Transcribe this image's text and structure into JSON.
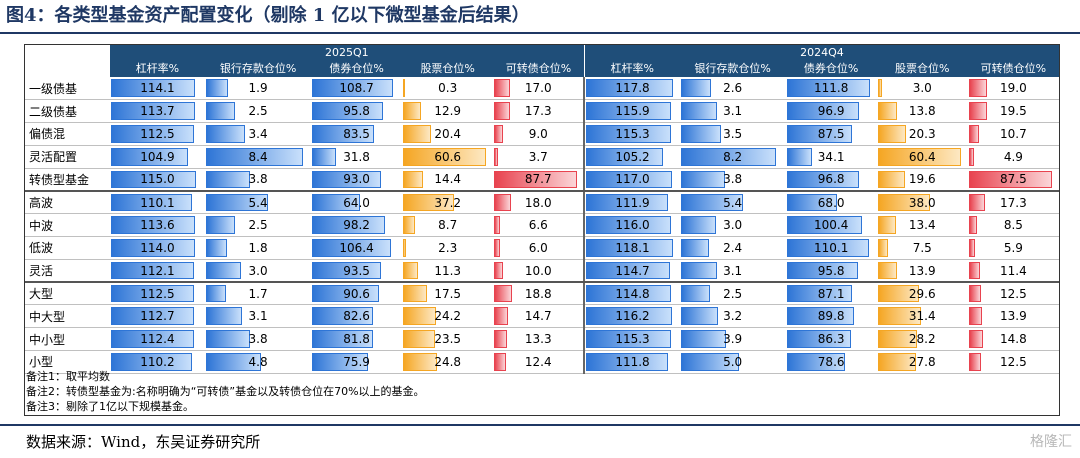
{
  "title": "图4：各类型基金资产配置变化（剔除 1 亿以下微型基金后结果）",
  "source": "数据来源：Wind，东吴证券研究所",
  "watermark": "格隆汇",
  "notes": [
    "备注1：取平均数",
    "备注2：转债型基金为:名称明确为“可转债”基金以及转债仓位在70%以上的基金。",
    "备注3：剔除了1亿以下规模基金。"
  ],
  "chart_data": {
    "type": "table",
    "groups": [
      "2025Q1",
      "2024Q4"
    ],
    "columns": [
      "杠杆率%",
      "银行存款仓位%",
      "债券仓位%",
      "股票仓位%",
      "可转债仓位%"
    ],
    "bar_colors": [
      "#2e75d6",
      "#2e75d6",
      "#2e75d6",
      "#f5a623",
      "#e8434f"
    ],
    "rows": [
      {
        "label": "一级债基",
        "values": [
          [
            114.1,
            1.9,
            108.7,
            0.3,
            17.0
          ],
          [
            117.8,
            2.6,
            111.8,
            3.0,
            19.0
          ]
        ]
      },
      {
        "label": "二级债基",
        "values": [
          [
            113.7,
            2.5,
            95.8,
            12.9,
            17.3
          ],
          [
            115.9,
            3.1,
            96.9,
            13.8,
            19.5
          ]
        ]
      },
      {
        "label": "偏债混",
        "values": [
          [
            112.5,
            3.4,
            83.5,
            20.4,
            9.0
          ],
          [
            115.3,
            3.5,
            87.5,
            20.3,
            10.7
          ]
        ]
      },
      {
        "label": "灵活配置",
        "values": [
          [
            104.9,
            8.4,
            31.8,
            60.6,
            3.7
          ],
          [
            105.2,
            8.2,
            34.1,
            60.4,
            4.9
          ]
        ]
      },
      {
        "label": "转债型基金",
        "values": [
          [
            115.0,
            3.8,
            93.0,
            14.4,
            87.7
          ],
          [
            117.0,
            3.8,
            96.8,
            19.6,
            87.5
          ]
        ]
      },
      {
        "label": "高波",
        "values": [
          [
            110.1,
            5.4,
            64.0,
            37.2,
            18.0
          ],
          [
            111.9,
            5.4,
            68.0,
            38.0,
            17.3
          ]
        ]
      },
      {
        "label": "中波",
        "values": [
          [
            113.6,
            2.5,
            98.2,
            8.7,
            6.6
          ],
          [
            116.0,
            3.0,
            100.4,
            13.4,
            8.5
          ]
        ]
      },
      {
        "label": "低波",
        "values": [
          [
            114.0,
            1.8,
            106.4,
            2.3,
            6.0
          ],
          [
            118.1,
            2.4,
            110.1,
            7.5,
            5.9
          ]
        ]
      },
      {
        "label": "灵活",
        "values": [
          [
            112.1,
            3.0,
            93.5,
            11.3,
            10.0
          ],
          [
            114.7,
            3.1,
            95.8,
            13.9,
            11.4
          ]
        ]
      },
      {
        "label": "大型",
        "values": [
          [
            112.5,
            1.7,
            90.6,
            17.5,
            18.8
          ],
          [
            114.8,
            2.5,
            87.1,
            29.6,
            12.5
          ]
        ]
      },
      {
        "label": "中大型",
        "values": [
          [
            112.7,
            3.1,
            82.6,
            24.2,
            14.7
          ],
          [
            116.2,
            3.2,
            89.8,
            31.4,
            13.9
          ]
        ]
      },
      {
        "label": "中小型",
        "values": [
          [
            112.4,
            3.8,
            81.8,
            23.5,
            13.3
          ],
          [
            115.3,
            3.9,
            86.3,
            28.2,
            14.8
          ]
        ]
      },
      {
        "label": "小型",
        "values": [
          [
            110.2,
            4.8,
            75.9,
            24.8,
            12.4
          ],
          [
            111.8,
            5.0,
            78.6,
            27.8,
            12.5
          ]
        ]
      }
    ]
  }
}
